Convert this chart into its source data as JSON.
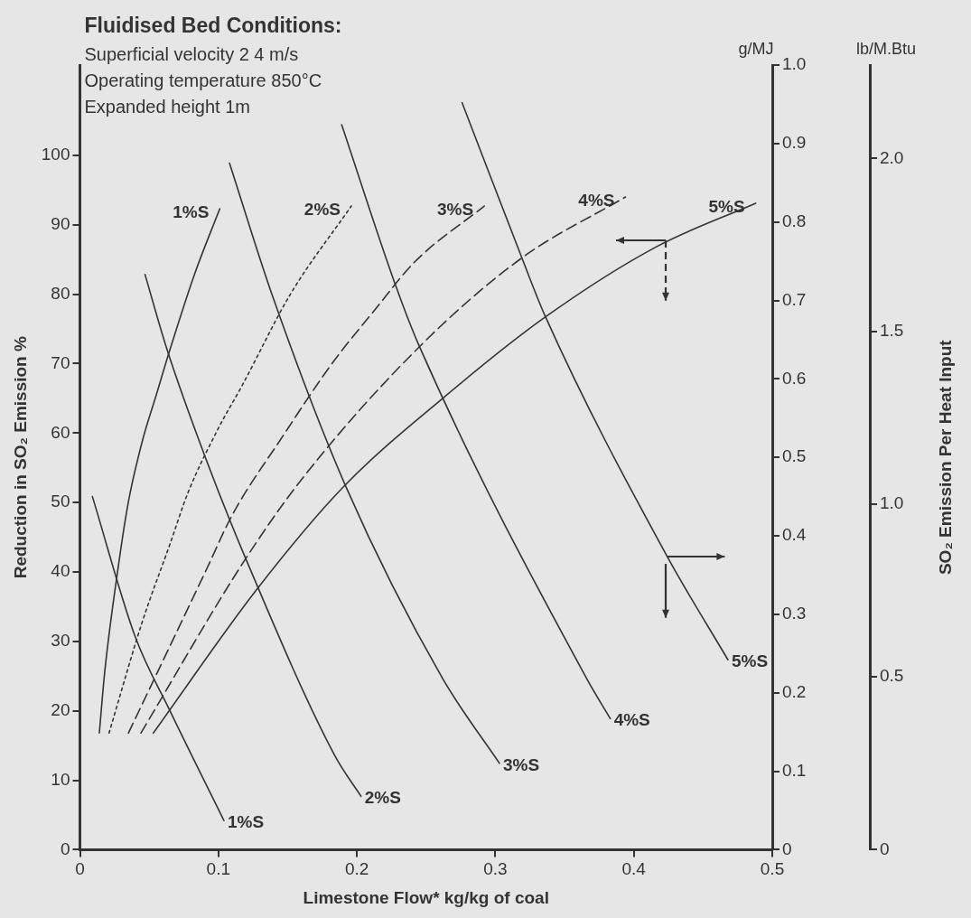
{
  "chart_data": {
    "type": "line",
    "title": "Fluidised Bed Conditions:",
    "subtitle": "Superficial velocity 2 4 m/s\nOperating temperature 850°C\nExpanded height 1m",
    "xlabel": "Limestone Flow* kg/kg of coal",
    "ylabel": "Reduction in SO₂ Emission %",
    "y2label": "g/MJ",
    "y3label": "lb/M.Btu",
    "annotations": [
      "SO₂ Emission Per Heat Input"
    ],
    "xlim": [
      0,
      0.5
    ],
    "xticks": [
      0,
      0.1,
      0.2,
      0.3,
      0.4,
      0.5
    ],
    "ylim": [
      0,
      113
    ],
    "yticks": [
      0,
      10,
      20,
      30,
      40,
      50,
      60,
      70,
      80,
      90,
      100
    ],
    "y2lim": [
      0,
      1
    ],
    "y2ticks": [
      0,
      0.1,
      0.2,
      0.3,
      0.4,
      0.5,
      0.6,
      0.7,
      0.8,
      0.9,
      {
        "value": 1,
        "label": "1.0"
      }
    ],
    "y3lim": [
      0,
      2.27
    ],
    "y3ticks": [
      0,
      0.5,
      {
        "value": 1,
        "label": "1.0"
      },
      1.5,
      {
        "value": 2,
        "label": "2.0"
      }
    ],
    "grid": false,
    "legend": false,
    "marker": "none",
    "series": [
      {
        "name": "1%S",
        "color": "#333333",
        "line_style": "solid",
        "x": [
          0.014,
          0.018,
          0.028,
          0.035,
          0.045,
          0.055,
          0.065,
          0.083,
          0.101
        ],
        "values": [
          16.8,
          25.8,
          41.2,
          50.1,
          58.8,
          65.4,
          72,
          83,
          92.3
        ]
      },
      {
        "name": "2%S",
        "color": "#333333",
        "line_style": "dotted",
        "x": [
          0.021,
          0.045,
          0.065,
          0.078,
          0.1,
          0.117,
          0.152,
          0.196
        ],
        "values": [
          16.8,
          32.8,
          44,
          51.4,
          60.7,
          66.8,
          80,
          92.7
        ]
      },
      {
        "name": "3%S",
        "color": "#333333",
        "line_style": "dashed",
        "x": [
          0.035,
          0.091,
          0.11,
          0.146,
          0.182,
          0.214,
          0.242,
          0.292
        ],
        "values": [
          16.8,
          40.2,
          48.2,
          59.4,
          70,
          78,
          84.7,
          92.7
        ]
      },
      {
        "name": "4%S",
        "color": "#333333",
        "line_style": "dashed",
        "x": [
          0.044,
          0.119,
          0.16,
          0.245,
          0.319,
          0.394
        ],
        "values": [
          16.8,
          41.7,
          53.3,
          72.4,
          85.2,
          94
        ]
      },
      {
        "name": "5%S",
        "color": "#333333",
        "line_style": "solid",
        "x": [
          0.053,
          0.127,
          0.19,
          0.262,
          0.336,
          0.416,
          0.488
        ],
        "values": [
          16.8,
          37.3,
          52.2,
          65,
          76.7,
          86.8,
          93.1
        ]
      },
      {
        "name": "1%S",
        "color": "#333333",
        "line_style": "solid",
        "axis": "y2",
        "x": [
          0.009,
          0.04,
          0.065,
          0.104
        ],
        "values": [
          0.45,
          0.271,
          0.177,
          0.037
        ]
      },
      {
        "name": "2%S",
        "color": "#333333",
        "line_style": "solid",
        "axis": "y2",
        "x": [
          0.047,
          0.063,
          0.091,
          0.119,
          0.184,
          0.203
        ],
        "values": [
          0.733,
          0.637,
          0.498,
          0.374,
          0.12,
          0.068
        ]
      },
      {
        "name": "3%S",
        "color": "#333333",
        "line_style": "solid",
        "axis": "y2",
        "x": [
          0.108,
          0.139,
          0.192,
          0.262,
          0.303
        ],
        "values": [
          0.875,
          0.706,
          0.463,
          0.218,
          0.11
        ]
      },
      {
        "name": "4%S",
        "color": "#333333",
        "line_style": "solid",
        "axis": "y2",
        "x": [
          0.189,
          0.228,
          0.245,
          0.366,
          0.383
        ],
        "values": [
          0.924,
          0.719,
          0.642,
          0.218,
          0.167
        ]
      },
      {
        "name": "5%S",
        "color": "#333333",
        "line_style": "solid",
        "axis": "y2",
        "x": [
          0.276,
          0.319,
          0.336,
          0.424,
          0.468
        ],
        "values": [
          0.952,
          0.755,
          0.68,
          0.374,
          0.242
        ]
      }
    ]
  }
}
